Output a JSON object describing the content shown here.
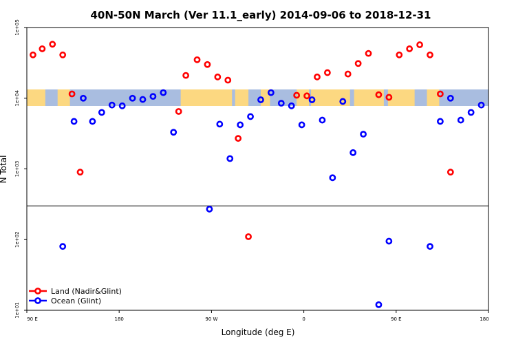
{
  "chart_data": {
    "type": "scatter",
    "title": "40N-50N March (Ver 11.1_early)   2014-09-06 to 2018-12-31",
    "xlabel": "Longitude (deg E)",
    "ylabel": "N Total",
    "log_y": true,
    "ylim": [
      10,
      100000
    ],
    "x_ticks": [
      {
        "lon": 90,
        "label": "90 E"
      },
      {
        "lon": 180,
        "label": "180"
      },
      {
        "lon": 270,
        "label": "90 W"
      },
      {
        "lon": 360,
        "label": "0"
      },
      {
        "lon": 450,
        "label": "90 E"
      },
      {
        "lon": 540,
        "label": "180"
      }
    ],
    "xlim": [
      90,
      540
    ],
    "y_ticks": [
      {
        "value": 10,
        "label": "1e+01"
      },
      {
        "value": 100,
        "label": "1e+02"
      },
      {
        "value": 1000,
        "label": "1e+03"
      },
      {
        "value": 10000,
        "label": "1e+04"
      },
      {
        "value": 100000,
        "label": "1e+05"
      }
    ],
    "reference_line": 300,
    "legend_placement": "bottom-left",
    "series": [
      {
        "name": "Land (Nadir&Glint)",
        "color": "#ff0000",
        "points": [
          [
            96,
            41000
          ],
          [
            105,
            50000
          ],
          [
            115,
            58000
          ],
          [
            125,
            41000
          ],
          [
            134,
            11500
          ],
          [
            142,
            900
          ],
          [
            238,
            6500
          ],
          [
            245,
            21000
          ],
          [
            256,
            35000
          ],
          [
            266,
            30000
          ],
          [
            276,
            20000
          ],
          [
            286,
            18000
          ],
          [
            296,
            2700
          ],
          [
            306,
            110
          ],
          [
            353,
            11000
          ],
          [
            363,
            10800
          ],
          [
            373,
            20000
          ],
          [
            383,
            23000
          ],
          [
            403,
            22000
          ],
          [
            413,
            31000
          ],
          [
            423,
            43000
          ],
          [
            433,
            11200
          ],
          [
            443,
            10300
          ],
          [
            453,
            41000
          ],
          [
            463,
            50000
          ],
          [
            473,
            57000
          ],
          [
            483,
            41000
          ],
          [
            493,
            11500
          ],
          [
            503,
            900
          ]
        ]
      },
      {
        "name": "Ocean (Glint)",
        "color": "#0000ff",
        "points": [
          [
            125,
            80
          ],
          [
            136,
            4700
          ],
          [
            145,
            10000
          ],
          [
            154,
            4700
          ],
          [
            163,
            6300
          ],
          [
            173,
            8000
          ],
          [
            183,
            7800
          ],
          [
            193,
            10000
          ],
          [
            203,
            9600
          ],
          [
            213,
            10600
          ],
          [
            223,
            12000
          ],
          [
            233,
            3300
          ],
          [
            268,
            270
          ],
          [
            278,
            4300
          ],
          [
            288,
            1400
          ],
          [
            298,
            4200
          ],
          [
            308,
            5500
          ],
          [
            318,
            9500
          ],
          [
            328,
            12000
          ],
          [
            338,
            8500
          ],
          [
            348,
            7800
          ],
          [
            358,
            4200
          ],
          [
            368,
            9500
          ],
          [
            378,
            4900
          ],
          [
            388,
            750
          ],
          [
            398,
            9000
          ],
          [
            408,
            1700
          ],
          [
            418,
            3100
          ],
          [
            433,
            12
          ],
          [
            443,
            95
          ],
          [
            483,
            80
          ],
          [
            493,
            4700
          ],
          [
            503,
            10000
          ],
          [
            513,
            4900
          ],
          [
            523,
            6300
          ],
          [
            533,
            8000
          ]
        ]
      }
    ]
  },
  "map_band": {
    "ocean_color": "#a9bde0",
    "land_color": "#fcd881",
    "land_segments_lon": [
      [
        90,
        108
      ],
      [
        120,
        132
      ],
      [
        240,
        290
      ],
      [
        293,
        306
      ],
      [
        318,
        327
      ],
      [
        353,
        365
      ],
      [
        367,
        405
      ],
      [
        409,
        438
      ],
      [
        442,
        468
      ],
      [
        480,
        492
      ]
    ]
  },
  "frame_color": "#000000"
}
